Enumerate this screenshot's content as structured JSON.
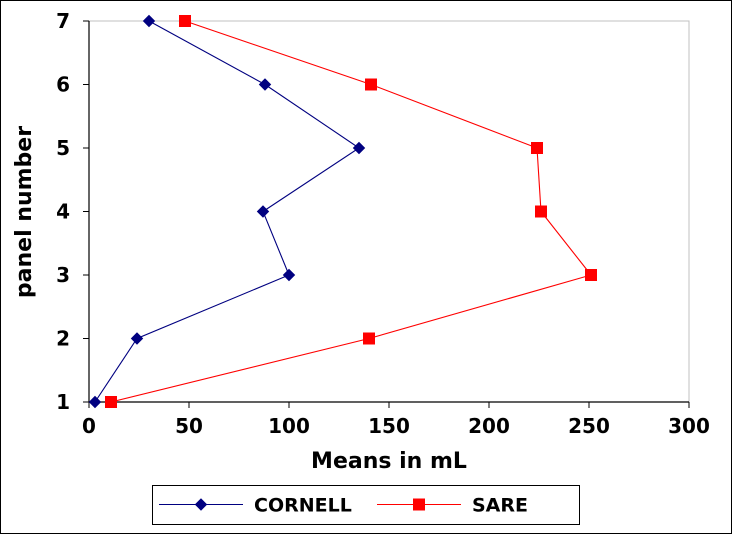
{
  "chart_data": {
    "type": "line",
    "title": "",
    "xlabel": "Means in mL",
    "ylabel": "panel number",
    "xlim": [
      0,
      300
    ],
    "ylim": [
      1,
      7
    ],
    "x_ticks": [
      0,
      50,
      100,
      150,
      200,
      250,
      300
    ],
    "y_ticks": [
      1,
      2,
      3,
      4,
      5,
      6,
      7
    ],
    "grid": false,
    "legend_position": "bottom",
    "series": [
      {
        "name": "CORNELL",
        "color": "#000080",
        "marker": "diamond",
        "points": [
          {
            "x": 3,
            "y": 1
          },
          {
            "x": 24,
            "y": 2
          },
          {
            "x": 100,
            "y": 3
          },
          {
            "x": 87,
            "y": 4
          },
          {
            "x": 135,
            "y": 5
          },
          {
            "x": 88,
            "y": 6
          },
          {
            "x": 30,
            "y": 7
          }
        ]
      },
      {
        "name": "SARE",
        "color": "#ff0000",
        "marker": "square",
        "points": [
          {
            "x": 11,
            "y": 1
          },
          {
            "x": 140,
            "y": 2
          },
          {
            "x": 251,
            "y": 3
          },
          {
            "x": 226,
            "y": 4
          },
          {
            "x": 224,
            "y": 5
          },
          {
            "x": 141,
            "y": 6
          },
          {
            "x": 48,
            "y": 7
          }
        ]
      }
    ]
  }
}
